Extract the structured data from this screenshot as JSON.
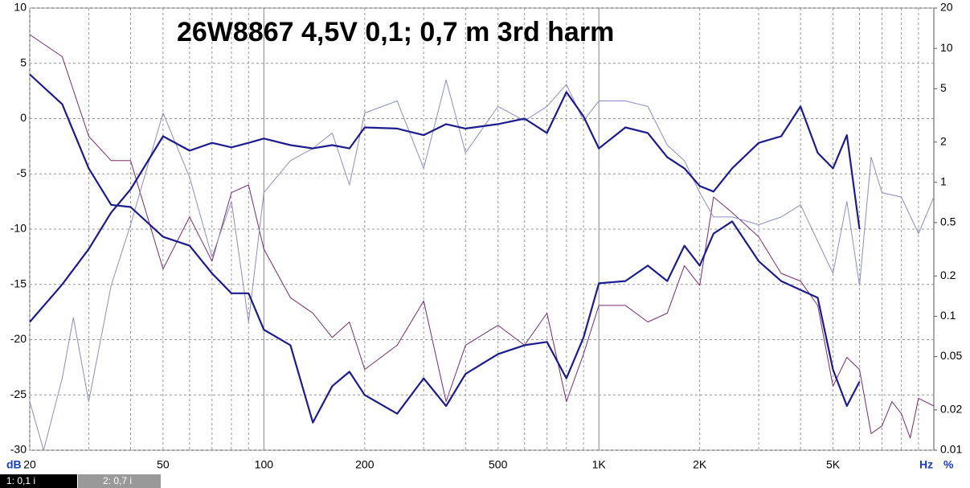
{
  "chart_data": {
    "type": "line",
    "title": "26W8867 4,5V 0,1; 0,7 m 3rd harm",
    "y_label": "dB",
    "x_unit": "Hz",
    "y2_unit": "%",
    "xlim": [
      20,
      10000
    ],
    "xscale": "log",
    "xticks": [
      20,
      50,
      100,
      200,
      500,
      {
        "value": 1000,
        "label": "1K"
      },
      {
        "value": 2000,
        "label": "2K"
      },
      {
        "value": 5000,
        "label": "5K"
      }
    ],
    "xgrid_minor": [
      30,
      40,
      60,
      70,
      80,
      90,
      300,
      400,
      600,
      700,
      800,
      900,
      3000,
      4000,
      6000,
      7000,
      8000,
      9000
    ],
    "ylim": [
      -30,
      10
    ],
    "yticks": [
      10,
      5,
      0,
      -5,
      -10,
      -15,
      -20,
      -25,
      -30
    ],
    "y2lim": [
      0.01,
      20
    ],
    "y2scale": "log",
    "y2ticks": [
      20,
      10,
      5,
      2,
      1,
      0.5,
      0.2,
      0.1,
      0.05,
      0.02,
      0.01
    ],
    "grid": true,
    "tabs": [
      "1: 0,1 i",
      "2: 0,7 i"
    ],
    "series": [
      {
        "color": "#1c1c8e",
        "width": 2.2,
        "x": [
          20,
          25,
          30,
          35,
          40,
          50,
          60,
          70,
          80,
          90,
          100,
          120,
          140,
          160,
          180,
          200,
          250,
          300,
          350,
          400,
          500,
          600,
          700,
          800,
          900,
          1000,
          1200,
          1400,
          1600,
          1800,
          2000,
          2200,
          2500,
          3000,
          3500,
          4000,
          4500,
          5000,
          5500,
          6000
        ],
        "values": [
          4,
          1.3,
          -4.5,
          -7.8,
          -8,
          -10.7,
          -11.5,
          -14,
          -15.8,
          -15.8,
          -19.1,
          -20.5,
          -27.5,
          -24.2,
          -22.9,
          -25,
          -26.7,
          -23.5,
          -26,
          -23.1,
          -21.3,
          -20.5,
          -20.2,
          -23.5,
          -19.8,
          -14.9,
          -14.7,
          -13.3,
          -14.7,
          -11.5,
          -13.3,
          -10.4,
          -9.3,
          -12.9,
          -14.7,
          -15.5,
          -16.2,
          -22.7,
          -26,
          -23.8
        ]
      },
      {
        "color": "#1c1c8e",
        "width": 2.2,
        "x": [
          20,
          25,
          30,
          35,
          40,
          50,
          60,
          70,
          80,
          90,
          100,
          120,
          140,
          160,
          180,
          200,
          250,
          300,
          350,
          400,
          500,
          600,
          700,
          800,
          900,
          1000,
          1200,
          1400,
          1600,
          1800,
          2000,
          2200,
          2500,
          3000,
          3500,
          4000,
          4500,
          5000,
          5500,
          6000
        ],
        "values": [
          -18.4,
          -15,
          -11.8,
          -8.5,
          -6.4,
          -1.6,
          -2.9,
          -2.2,
          -2.6,
          -2.2,
          -1.8,
          -2.4,
          -2.7,
          -2.4,
          -2.7,
          -0.8,
          -0.9,
          -1.5,
          -0.5,
          -0.9,
          -0.5,
          0,
          -1.3,
          2.4,
          0.2,
          -2.7,
          -0.8,
          -1.3,
          -3.5,
          -4.5,
          -6.1,
          -6.6,
          -4.5,
          -2.2,
          -1.6,
          1.1,
          -3.1,
          -4.5,
          -1.5,
          -10
        ]
      },
      {
        "color": "#7a2a70",
        "width": 1,
        "x": [
          20,
          25,
          30,
          35,
          40,
          50,
          60,
          70,
          80,
          90,
          100,
          120,
          140,
          160,
          180,
          200,
          250,
          300,
          350,
          400,
          500,
          600,
          700,
          800,
          900,
          1000,
          1200,
          1400,
          1600,
          1800,
          2000,
          2200,
          2500,
          3000,
          3500,
          4000,
          4500,
          5000,
          5500,
          6000,
          6500,
          7000,
          7500,
          8000,
          8500,
          9000,
          10000
        ],
        "values": [
          7.6,
          5.6,
          -1.6,
          -3.8,
          -3.8,
          -13.6,
          -8.9,
          -12.9,
          -6.7,
          -6,
          -11.8,
          -16.2,
          -17.6,
          -19.8,
          -18.4,
          -22.7,
          -20.5,
          -16.5,
          -25.6,
          -20.5,
          -18.7,
          -20.5,
          -17.6,
          -25.6,
          -21.3,
          -16.9,
          -16.9,
          -18.4,
          -17.6,
          -13.3,
          -15.1,
          -7.1,
          -8.5,
          -10.7,
          -14,
          -14.7,
          -16.9,
          -24.2,
          -21.6,
          -22.7,
          -28.5,
          -27.8,
          -25.6,
          -26.7,
          -28.9,
          -25.3,
          -26
        ]
      },
      {
        "color": "#8c8cc8",
        "width": 1,
        "x": [
          20,
          22,
          25,
          27,
          30,
          35,
          40,
          50,
          60,
          70,
          80,
          90,
          100,
          120,
          140,
          160,
          180,
          200,
          250,
          300,
          350,
          400,
          500,
          600,
          700,
          800,
          900,
          1000,
          1200,
          1400,
          1600,
          1800,
          2000,
          2200,
          2500,
          3000,
          3500,
          4000,
          4500,
          5000,
          5500,
          6000,
          6500,
          7000,
          8000,
          9000,
          10000
        ],
        "values": [
          -25.6,
          -30,
          -23.5,
          -18,
          -25.6,
          -15.1,
          -9.6,
          0.5,
          -5.3,
          -12.5,
          -7.5,
          -18.4,
          -6.7,
          -3.8,
          -2.7,
          -1.3,
          -6,
          0.5,
          1.6,
          -4.5,
          3.5,
          -3.1,
          1.1,
          -0.2,
          1.1,
          3.1,
          -0.2,
          1.6,
          1.6,
          1.1,
          -2.4,
          -3.8,
          -6.7,
          -8.9,
          -8.9,
          -9.6,
          -8.9,
          -7.8,
          -11.1,
          -14,
          -7.5,
          -15.1,
          -3.5,
          -6.7,
          -7.1,
          -10.4,
          -7.1
        ]
      }
    ]
  }
}
